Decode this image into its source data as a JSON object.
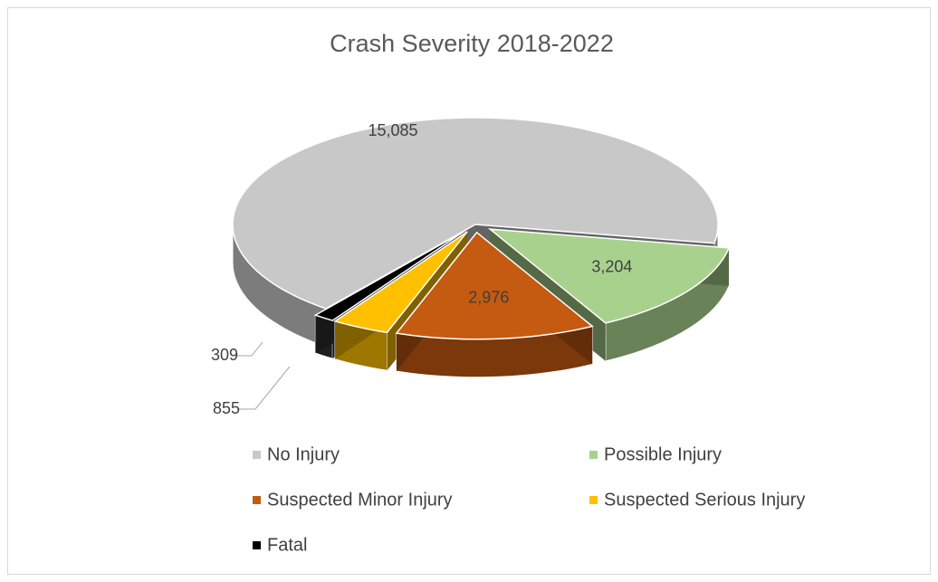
{
  "chart_data": {
    "type": "pie",
    "title": "Crash Severity 2018-2022",
    "categories": [
      "No Injury",
      "Possible Injury",
      "Suspected Minor Injury",
      "Suspected Serious Injury",
      "Fatal"
    ],
    "values": [
      15085,
      3204,
      2976,
      855,
      309
    ],
    "value_labels": [
      "15,085",
      "3,204",
      "2,976",
      "855",
      "309"
    ],
    "colors": [
      "#c8c8c8",
      "#a9d18e",
      "#c55a11",
      "#ffc000",
      "#000000"
    ],
    "legend": "bottom"
  }
}
